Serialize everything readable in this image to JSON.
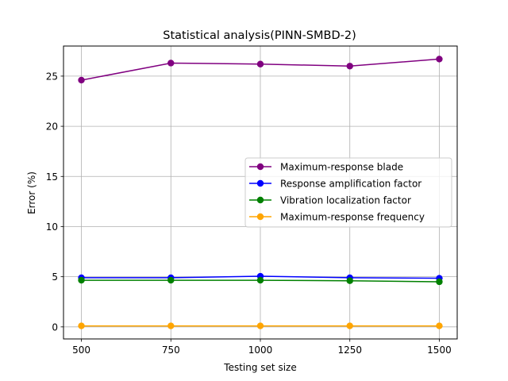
{
  "chart_data": {
    "type": "line",
    "title": "Statistical analysis(PINN-SMBD-2)",
    "xlabel": "Testing set size",
    "ylabel": "Error (%)",
    "x": [
      500,
      750,
      1000,
      1250,
      1500
    ],
    "x_ticks": [
      "500",
      "750",
      "1000",
      "1250",
      "1500"
    ],
    "y_ticks": [
      "0",
      "5",
      "10",
      "15",
      "20",
      "25"
    ],
    "xlim": [
      450,
      1550
    ],
    "ylim": [
      -1.2,
      28.0
    ],
    "grid": true,
    "legend_position": "center-right",
    "series": [
      {
        "name": "Maximum-response blade",
        "color": "#800080",
        "values": [
          24.6,
          26.3,
          26.2,
          26.0,
          26.7
        ]
      },
      {
        "name": "Response amplification factor",
        "color": "#0000ff",
        "values": [
          4.9,
          4.9,
          5.05,
          4.9,
          4.85
        ]
      },
      {
        "name": "Vibration localization factor",
        "color": "#008000",
        "values": [
          4.65,
          4.65,
          4.65,
          4.6,
          4.5
        ]
      },
      {
        "name": "Maximum-response frequency",
        "color": "#ffa500",
        "values": [
          0.1,
          0.1,
          0.1,
          0.1,
          0.1
        ]
      }
    ]
  }
}
